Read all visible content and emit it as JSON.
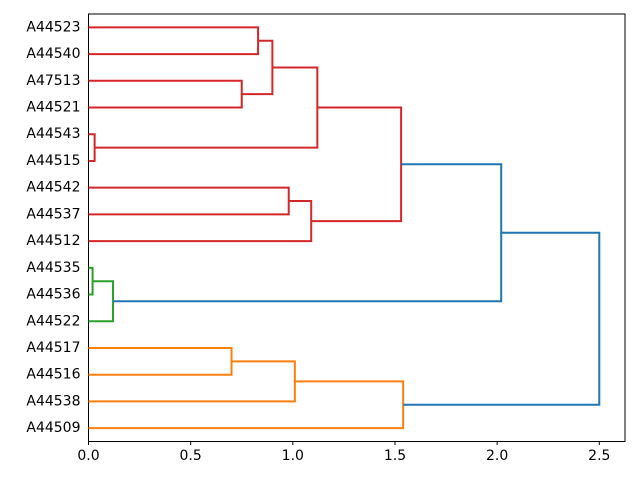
{
  "chart_data": {
    "type": "dendrogram",
    "orientation": "right",
    "title": "",
    "xlabel": "",
    "ylabel": "",
    "grid": false,
    "background": "#ffffff",
    "axis_color": "#000000",
    "xlim": [
      0,
      2.5
    ],
    "x_ticks": [
      {
        "label": "0.0",
        "value": 0.0
      },
      {
        "label": "0.5",
        "value": 0.5
      },
      {
        "label": "1.0",
        "value": 1.0
      },
      {
        "label": "1.5",
        "value": 1.5
      },
      {
        "label": "2.0",
        "value": 2.0
      },
      {
        "label": "2.5",
        "value": 2.5
      }
    ],
    "leaves": [
      "A44523",
      "A44540",
      "A47513",
      "A44521",
      "A44543",
      "A44515",
      "A44542",
      "A44537",
      "A44512",
      "A44535",
      "A44536",
      "A44522",
      "A44517",
      "A44516",
      "A44538",
      "A44509"
    ],
    "colors": {
      "red": "#d62728",
      "green": "#2ca02c",
      "orange": "#ff7f0e",
      "blue": "#1f77b4"
    },
    "merges": [
      {
        "id": "m0",
        "a": "A44523",
        "b": "A44540",
        "dist": 0.83,
        "color": "red"
      },
      {
        "id": "m1",
        "a": "A47513",
        "b": "A44521",
        "dist": 0.75,
        "color": "red"
      },
      {
        "id": "m2",
        "a": "m0",
        "b": "m1",
        "dist": 0.9,
        "color": "red"
      },
      {
        "id": "m3",
        "a": "A44543",
        "b": "A44515",
        "dist": 0.03,
        "color": "red"
      },
      {
        "id": "m4",
        "a": "m2",
        "b": "m3",
        "dist": 1.12,
        "color": "red"
      },
      {
        "id": "m5",
        "a": "A44542",
        "b": "A44537",
        "dist": 0.98,
        "color": "red"
      },
      {
        "id": "m6",
        "a": "m5",
        "b": "A44512",
        "dist": 1.09,
        "color": "red"
      },
      {
        "id": "m7",
        "a": "m4",
        "b": "m6",
        "dist": 1.53,
        "color": "red"
      },
      {
        "id": "m8",
        "a": "A44535",
        "b": "A44536",
        "dist": 0.02,
        "color": "green"
      },
      {
        "id": "m9",
        "a": "m8",
        "b": "A44522",
        "dist": 0.12,
        "color": "green"
      },
      {
        "id": "m10",
        "a": "A44517",
        "b": "A44516",
        "dist": 0.7,
        "color": "orange"
      },
      {
        "id": "m11",
        "a": "m10",
        "b": "A44538",
        "dist": 1.01,
        "color": "orange"
      },
      {
        "id": "m12",
        "a": "m11",
        "b": "A44509",
        "dist": 1.54,
        "color": "orange"
      },
      {
        "id": "m13",
        "a": "m7",
        "b": "m9",
        "dist": 2.02,
        "color": "blue"
      },
      {
        "id": "m14",
        "a": "m13",
        "b": "m12",
        "dist": 2.5,
        "color": "blue"
      }
    ],
    "line_width": 2
  }
}
